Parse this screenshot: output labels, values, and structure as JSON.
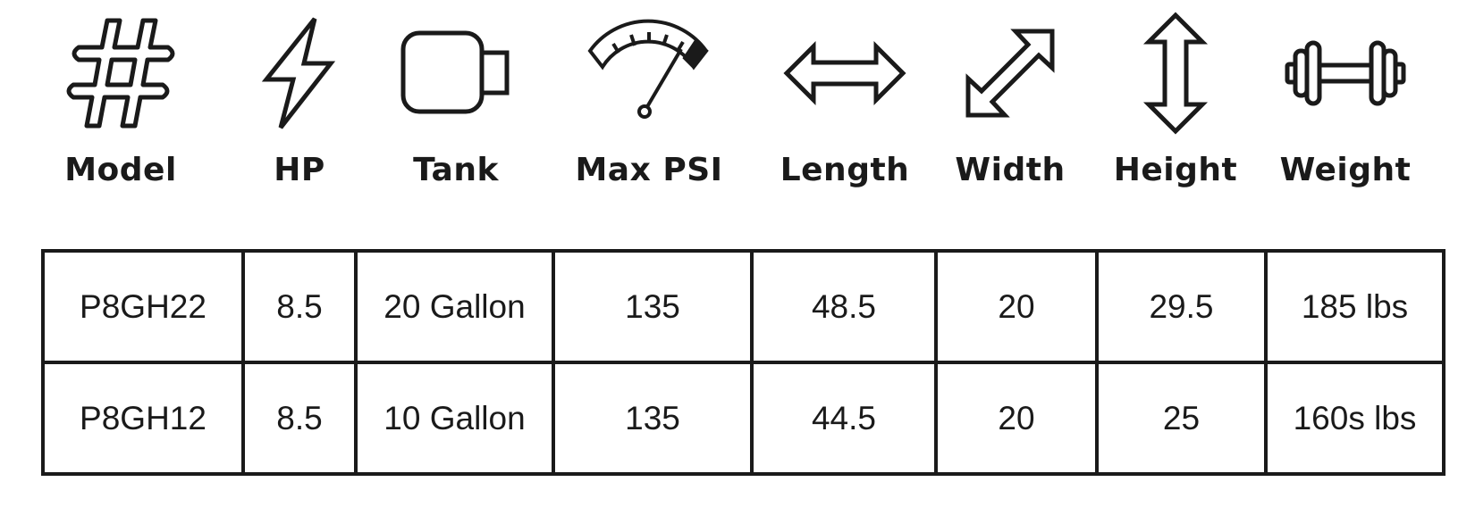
{
  "columns": [
    {
      "icon": "hashtag-icon",
      "label": "Model"
    },
    {
      "icon": "lightning-bolt-icon",
      "label": "HP"
    },
    {
      "icon": "tank-icon",
      "label": "Tank"
    },
    {
      "icon": "pressure-gauge-icon",
      "label": "Max PSI"
    },
    {
      "icon": "horizontal-arrow-icon",
      "label": "Length"
    },
    {
      "icon": "diagonal-arrow-icon",
      "label": "Width"
    },
    {
      "icon": "vertical-arrow-icon",
      "label": "Height"
    },
    {
      "icon": "dumbbell-icon",
      "label": "Weight"
    }
  ],
  "rows": [
    [
      "P8GH22",
      "8.5",
      "20 Gallon",
      "135",
      "48.5",
      "20",
      "29.5",
      "185 lbs"
    ],
    [
      "P8GH12",
      "8.5",
      "10 Gallon",
      "135",
      "44.5",
      "20",
      "25",
      "160s lbs"
    ]
  ]
}
